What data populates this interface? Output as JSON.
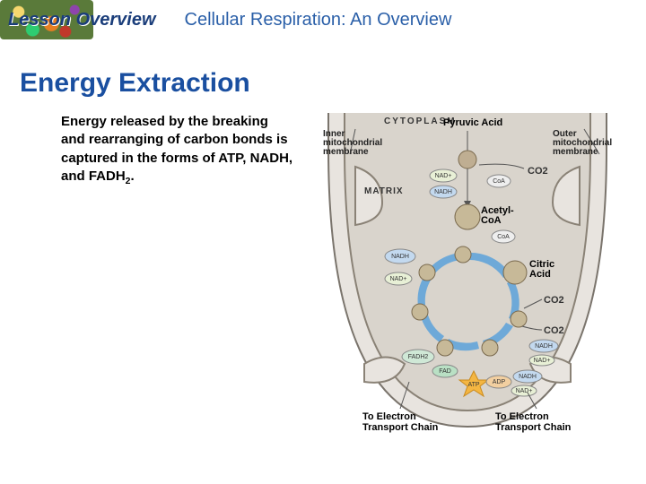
{
  "header": {
    "lesson_overview": "Lesson Overview",
    "topic_title": "Cellular Respiration: An Overview"
  },
  "section": {
    "title": "Energy Extraction",
    "body_html": "Energy released by the breaking and rearranging of carbon bonds is captured in the forms of ATP, NADH, and FADH<sub>2</sub>."
  },
  "diagram": {
    "cytoplasm_label": "CYTOPLASM",
    "matrix_label": "MATRIX",
    "top_labels": {
      "inner_memb": "Inner\nmitochondrial\nmembrane",
      "pyruvic": "Pyruvic Acid",
      "outer_memb": "Outer\nmitochondrial\nmembrane"
    },
    "nodes": {
      "acetyl_coa": "Acetyl-\nCoA",
      "citric_acid": "Citric\nAcid"
    },
    "pills": {
      "nadh": "NADH",
      "nadp": "NAD+",
      "fadh2": "FADH2",
      "fad": "FAD",
      "atp": "ATP",
      "adp": "ADP",
      "coa": "CoA"
    },
    "co2": "CO2",
    "bottom_left": "To Electron\nTransport Chain",
    "bottom_right": "To Electron\nTransport Chain",
    "colors": {
      "bg": "#ffffff",
      "outer_fill": "#e8e4df",
      "inner_fill": "#d9d4cc",
      "cycle_arrow": "#6ea9d8",
      "nadh": "#c3d9ef",
      "nadp": "#e8f0d6",
      "fadh": "#cfe8d6",
      "fad": "#b9e0c4",
      "atp": "#f7d58a",
      "adp": "#f2cfa0"
    }
  }
}
